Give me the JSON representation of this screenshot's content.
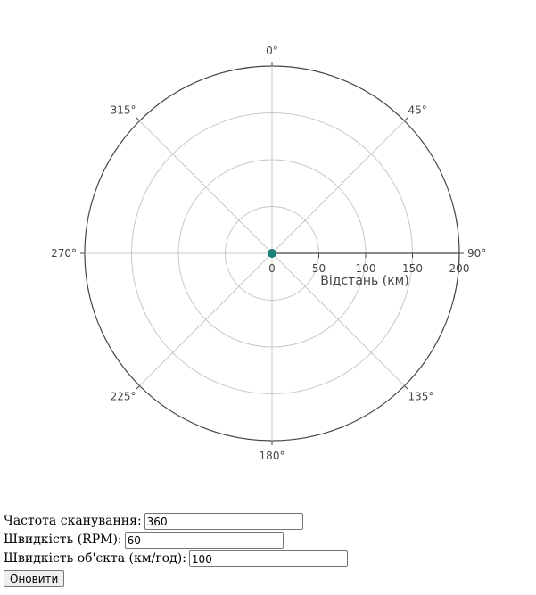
{
  "radar": {
    "angle_labels": [
      "0°",
      "45°",
      "90°",
      "135°",
      "180°",
      "225°",
      "270°",
      "315°"
    ],
    "radial_tick_labels": [
      "0",
      "50",
      "100",
      "150",
      "200"
    ],
    "radial_axis_title": "Відстань (км)",
    "colors": {
      "outer_ring": "#444444",
      "grid": "#c8c8c8",
      "sweep_line": "#444444",
      "target": "#1b7f7a"
    }
  },
  "chart_data": {
    "type": "polar-scatter",
    "radial_range": [
      0,
      200
    ],
    "radial_ticks": [
      0,
      50,
      100,
      150,
      200
    ],
    "angular_ticks_deg": [
      0,
      45,
      90,
      135,
      180,
      225,
      270,
      315
    ],
    "direction": "clockwise",
    "rotation": "0° at top",
    "sweep_angle_deg": 90,
    "points": [
      {
        "r": 0,
        "theta": 0
      }
    ],
    "radial_axis_title": "Відстань (км)"
  },
  "form": {
    "scan_rate_label": "Частота сканування: ",
    "scan_rate_value": "360",
    "speed_rpm_label": "Швидкість (RPM): ",
    "speed_rpm_value": "60",
    "object_speed_label": "Швидкість об'єкта (км/год): ",
    "object_speed_value": "100",
    "update_label": "Оновити"
  }
}
